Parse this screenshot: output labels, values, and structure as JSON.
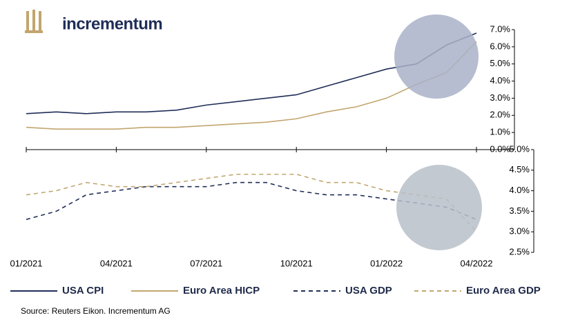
{
  "logo": "incrementum",
  "source": "Source: Reuters Eikon. Incrementum AG",
  "chart_data": [
    {
      "type": "line",
      "ylim": [
        0,
        7
      ],
      "yticks": [
        {
          "value": 0,
          "label": "0.0%"
        },
        {
          "value": 1,
          "label": "1.0%"
        },
        {
          "value": 2,
          "label": "2.0%"
        },
        {
          "value": 3,
          "label": "3.0%"
        },
        {
          "value": 4,
          "label": "4.0%"
        },
        {
          "value": 5,
          "label": "5.0%"
        },
        {
          "value": 6,
          "label": "6.0%"
        },
        {
          "value": 7,
          "label": "7.0%"
        }
      ],
      "series": [
        {
          "name": "USA CPI",
          "color": "#1f2d57",
          "dashed": false,
          "values": [
            2.1,
            2.2,
            2.1,
            2.2,
            2.2,
            2.3,
            2.6,
            2.8,
            3.0,
            3.2,
            3.7,
            4.2,
            4.7,
            5.0,
            6.1,
            6.8
          ]
        },
        {
          "name": "Euro Area HICP",
          "color": "#c2a56e",
          "dashed": false,
          "values": [
            1.3,
            1.2,
            1.2,
            1.2,
            1.3,
            1.3,
            1.4,
            1.5,
            1.6,
            1.8,
            2.2,
            2.5,
            3.0,
            3.8,
            4.5,
            6.3
          ]
        }
      ]
    },
    {
      "type": "line",
      "ylim": [
        2.5,
        5
      ],
      "categories": [
        "01/2021",
        null,
        null,
        "04/2021",
        null,
        null,
        "07/2021",
        null,
        null,
        "10/2021",
        null,
        null,
        "01/2022",
        null,
        null,
        "04/2022"
      ],
      "yticks": [
        {
          "value": 2.5,
          "label": "2.5%"
        },
        {
          "value": 3,
          "label": "3.0%"
        },
        {
          "value": 3.5,
          "label": "3.5%"
        },
        {
          "value": 4,
          "label": "4.0%"
        },
        {
          "value": 4.5,
          "label": "4.5%"
        },
        {
          "value": 5,
          "label": "5.0%"
        }
      ],
      "series": [
        {
          "name": "USA GDP",
          "color": "#1f2d57",
          "dashed": true,
          "values": [
            3.3,
            3.5,
            3.9,
            4.0,
            4.1,
            4.1,
            4.1,
            4.2,
            4.2,
            4.0,
            3.9,
            3.9,
            3.8,
            3.7,
            3.6,
            3.3
          ]
        },
        {
          "name": "Euro Area GDP",
          "color": "#c2a56e",
          "dashed": true,
          "values": [
            3.9,
            4.0,
            4.2,
            4.1,
            4.1,
            4.2,
            4.3,
            4.4,
            4.4,
            4.4,
            4.2,
            4.2,
            4.0,
            3.9,
            3.8,
            3.0
          ]
        }
      ]
    }
  ]
}
